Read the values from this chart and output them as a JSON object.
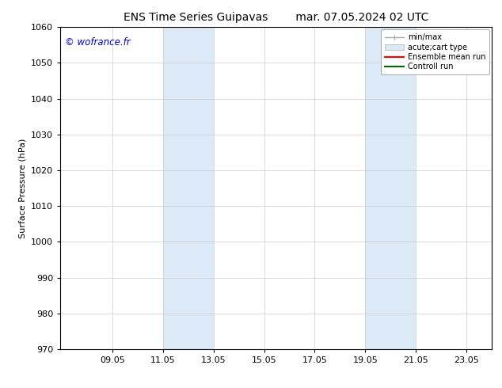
{
  "title_left": "ENS Time Series Guipavas",
  "title_right": "mar. 07.05.2024 02 UTC",
  "ylabel": "Surface Pressure (hPa)",
  "ylim": [
    970,
    1060
  ],
  "yticks": [
    970,
    980,
    990,
    1000,
    1010,
    1020,
    1030,
    1040,
    1050,
    1060
  ],
  "xlim_start": 7.0,
  "xlim_end": 24.05,
  "xticks": [
    9.05,
    11.05,
    13.05,
    15.05,
    17.05,
    19.05,
    21.05,
    23.05
  ],
  "xticklabels": [
    "09.05",
    "11.05",
    "13.05",
    "15.05",
    "17.05",
    "19.05",
    "21.05",
    "23.05"
  ],
  "shaded_bands": [
    {
      "x_start": 11.05,
      "x_end": 13.05
    },
    {
      "x_start": 19.05,
      "x_end": 21.05
    }
  ],
  "watermark_text": "© wofrance.fr",
  "watermark_color": "#0000cc",
  "band_color": "#dce9f7",
  "legend_entries": [
    {
      "label": "min/max"
    },
    {
      "label": "acute;cart type"
    },
    {
      "label": "Ensemble mean run"
    },
    {
      "label": "Controll run"
    }
  ],
  "bg_color": "#ffffff",
  "grid_color": "#cccccc",
  "title_fontsize": 10,
  "label_fontsize": 8,
  "tick_fontsize": 8
}
